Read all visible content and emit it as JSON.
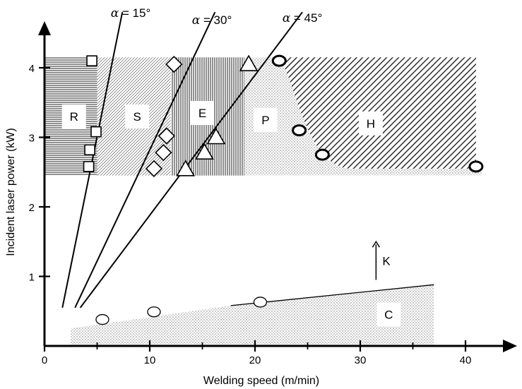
{
  "chart_data": {
    "type": "scatter",
    "xlabel": "Welding speed (m/min)",
    "ylabel": "Incident laser power (kW)",
    "xlim": [
      0,
      45
    ],
    "ylim": [
      0,
      4.6
    ],
    "x_ticks": [
      0,
      10,
      20,
      30,
      40
    ],
    "y_ticks": [
      1,
      2,
      3,
      4
    ],
    "x_tick_labels": [
      "0",
      "10",
      "20",
      "30",
      "40"
    ],
    "y_tick_labels": [
      "1",
      "2",
      "3",
      "4"
    ],
    "grid": false,
    "legend": "none",
    "regions": [
      {
        "label": "R",
        "pattern": "horizontal-hatch",
        "x": [
          0,
          5
        ],
        "y": [
          2.45,
          4.15
        ]
      },
      {
        "label": "S",
        "pattern": "diagonal-fine",
        "x": [
          5,
          12
        ],
        "y": [
          2.45,
          4.15
        ]
      },
      {
        "label": "E",
        "pattern": "vertical-hatch",
        "x": [
          12,
          19
        ],
        "y": [
          2.45,
          4.15
        ]
      },
      {
        "label": "P",
        "pattern": "stipple",
        "x": [
          19,
          25
        ],
        "y": [
          2.45,
          4.15
        ]
      },
      {
        "label": "H",
        "pattern": "diagonal-coarse",
        "x": [
          22,
          41
        ],
        "y": [
          2.55,
          4.15
        ]
      },
      {
        "label": "C",
        "pattern": "stipple",
        "x": [
          2.5,
          37
        ],
        "y": [
          0,
          0.85
        ]
      }
    ],
    "angle_lines": [
      {
        "label": "α = 15°",
        "greek": "α",
        "text": " = 15°",
        "from": [
          1.7,
          0.55
        ],
        "to": [
          7.4,
          4.8
        ]
      },
      {
        "label": "α = 30°",
        "greek": "α",
        "text": " = 30°",
        "from": [
          2.9,
          0.55
        ],
        "to": [
          16.2,
          4.8
        ]
      },
      {
        "label": "α = 45°",
        "greek": "α",
        "text": " = 45°",
        "from": [
          3.4,
          0.55
        ],
        "to": [
          24.5,
          4.8
        ]
      }
    ],
    "c_boundary_line": {
      "from": [
        17.7,
        0.58
      ],
      "to": [
        37,
        0.88
      ]
    },
    "annotation_k": {
      "text": "K",
      "x": 31.5,
      "y": [
        0.95,
        1.5
      ]
    },
    "series": [
      {
        "marker": "square",
        "points": [
          [
            4.5,
            4.1
          ],
          [
            4.9,
            3.08
          ],
          [
            4.3,
            2.82
          ],
          [
            4.2,
            2.58
          ]
        ]
      },
      {
        "marker": "diamond",
        "points": [
          [
            12.3,
            4.05
          ],
          [
            11.6,
            3.02
          ],
          [
            11.3,
            2.78
          ],
          [
            10.4,
            2.55
          ]
        ]
      },
      {
        "marker": "triangle",
        "points": [
          [
            19.4,
            4.05
          ],
          [
            16.3,
            3.0
          ],
          [
            15.2,
            2.78
          ],
          [
            13.4,
            2.54
          ]
        ]
      },
      {
        "marker": "circle",
        "points": [
          [
            22.3,
            4.1
          ],
          [
            24.2,
            3.1
          ],
          [
            26.4,
            2.75
          ],
          [
            41.0,
            2.58
          ]
        ]
      },
      {
        "marker": "circle-open",
        "points": [
          [
            5.5,
            0.38
          ],
          [
            10.4,
            0.49
          ],
          [
            20.5,
            0.63
          ]
        ]
      }
    ]
  }
}
